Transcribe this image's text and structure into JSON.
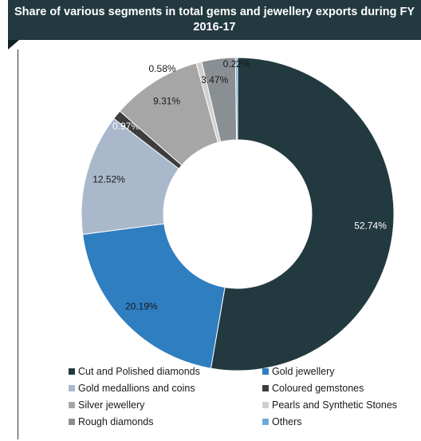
{
  "chart_data": {
    "type": "pie",
    "variant": "donut",
    "title": "Share of various segments in total gems and jewellery exports during FY 2016-17",
    "categories": [
      "Cut and Polished diamonds",
      "Gold jewellery",
      "Gold medallions and coins",
      "Coloured gemstones",
      "Silver jewellery",
      "Pearls and Synthetic Stones",
      "Rough diamonds",
      "Others"
    ],
    "values": [
      52.74,
      20.19,
      12.52,
      0.97,
      9.31,
      0.58,
      3.47,
      0.22
    ],
    "data_labels": [
      "52.74%",
      "20.19%",
      "12.52%",
      "0.97%",
      "9.31%",
      "0.58%",
      "3.47%",
      "0.22%"
    ],
    "colors": [
      "#22393f",
      "#2e7ec0",
      "#a9b8cb",
      "#3d3d3d",
      "#a6a6a6",
      "#cfcfcf",
      "#8a8f93",
      "#6fa9dc"
    ],
    "label_colors": [
      "#ffffff",
      "#1a1a1a",
      "#1a1a1a",
      "#ffffff",
      "#1a1a1a",
      "#1a1a1a",
      "#1a1a1a",
      "#1a1a1a"
    ],
    "legend_position": "bottom"
  }
}
